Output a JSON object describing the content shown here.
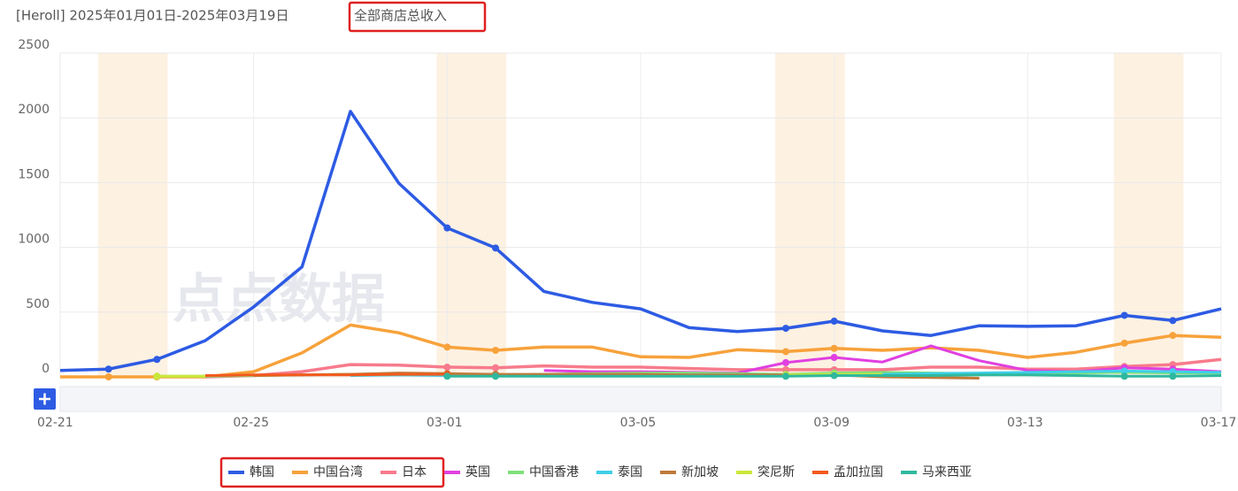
{
  "chart_data": {
    "type": "line",
    "title": "[Heroll] 2025年01月01日-2025年03月19日",
    "subtitle": "全部商店总收入",
    "watermark": "点点数据",
    "categories": [
      "02-21",
      "02-22",
      "02-23",
      "02-24",
      "02-25",
      "02-26",
      "02-27",
      "02-28",
      "03-01",
      "03-02",
      "03-03",
      "03-04",
      "03-05",
      "03-06",
      "03-07",
      "03-08",
      "03-09",
      "03-10",
      "03-11",
      "03-12",
      "03-13",
      "03-14",
      "03-15",
      "03-16",
      "03-17"
    ],
    "xtick_step": 4,
    "shaded_categories": [
      [
        "02-22",
        "02-23"
      ],
      [
        "03-01",
        "03-02"
      ],
      [
        "03-08",
        "03-09"
      ],
      [
        "03-15",
        "03-16"
      ]
    ],
    "ylim": [
      0,
      2500
    ],
    "yticks": [
      0,
      500,
      1000,
      1500,
      2000,
      2500
    ],
    "grid": true,
    "legend": "bottom",
    "series": [
      {
        "name": "韩国",
        "color": "#2d5be3",
        "values": [
          50,
          60,
          135,
          280,
          540,
          850,
          2050,
          1495,
          1150,
          995,
          660,
          575,
          525,
          380,
          350,
          375,
          430,
          355,
          320,
          395,
          390,
          395,
          475,
          435,
          525
        ]
      },
      {
        "name": "中国台湾",
        "color": "#f7a23b",
        "values": [
          0,
          0,
          0,
          0,
          40,
          185,
          400,
          340,
          230,
          205,
          230,
          230,
          155,
          150,
          210,
          195,
          220,
          205,
          225,
          205,
          150,
          190,
          260,
          320,
          305
        ]
      },
      {
        "name": "日本",
        "color": "#f77b8c",
        "values": [
          null,
          null,
          null,
          0,
          10,
          40,
          95,
          90,
          75,
          70,
          85,
          75,
          75,
          65,
          55,
          55,
          55,
          55,
          75,
          75,
          60,
          60,
          80,
          95,
          135
        ]
      },
      {
        "name": "英国",
        "color": "#e040e0",
        "values": [
          null,
          null,
          null,
          null,
          null,
          null,
          null,
          null,
          null,
          null,
          50,
          40,
          40,
          35,
          30,
          110,
          150,
          115,
          240,
          125,
          50,
          40,
          70,
          60,
          40
        ]
      },
      {
        "name": "中国香港",
        "color": "#7ee07a",
        "values": [
          null,
          null,
          5,
          5,
          10,
          15,
          20,
          25,
          20,
          15,
          20,
          25,
          30,
          30,
          25,
          20,
          30,
          35,
          30,
          25,
          30,
          30,
          35,
          30,
          30
        ]
      },
      {
        "name": "泰国",
        "color": "#3fcfe8",
        "values": [
          null,
          null,
          null,
          null,
          null,
          null,
          10,
          15,
          10,
          10,
          15,
          10,
          10,
          15,
          15,
          10,
          20,
          20,
          25,
          30,
          35,
          40,
          45,
          40,
          35
        ]
      },
      {
        "name": "新加坡",
        "color": "#c07a3a",
        "values": [
          null,
          null,
          null,
          null,
          10,
          15,
          20,
          30,
          25,
          20,
          20,
          20,
          20,
          15,
          15,
          15,
          15,
          0,
          -5,
          -10,
          null,
          null,
          null,
          null,
          null
        ]
      },
      {
        "name": "突尼斯",
        "color": "#c9e83a",
        "values": [
          null,
          null,
          5,
          5,
          null,
          null,
          null,
          null,
          null,
          null,
          null,
          null,
          null,
          null,
          null,
          15,
          20,
          20,
          null,
          null,
          null,
          null,
          null,
          null,
          null
        ]
      },
      {
        "name": "孟加拉国",
        "color": "#f25a1e",
        "values": [
          null,
          null,
          null,
          10,
          15,
          15,
          15,
          20,
          20,
          null,
          null,
          null,
          null,
          null,
          null,
          null,
          null,
          null,
          null,
          null,
          null,
          null,
          null,
          null,
          null
        ]
      },
      {
        "name": "马来西亚",
        "color": "#2fb89e",
        "values": [
          null,
          null,
          null,
          null,
          null,
          null,
          null,
          null,
          5,
          5,
          5,
          5,
          5,
          5,
          5,
          5,
          10,
          10,
          10,
          15,
          15,
          10,
          5,
          5,
          10
        ]
      }
    ]
  }
}
